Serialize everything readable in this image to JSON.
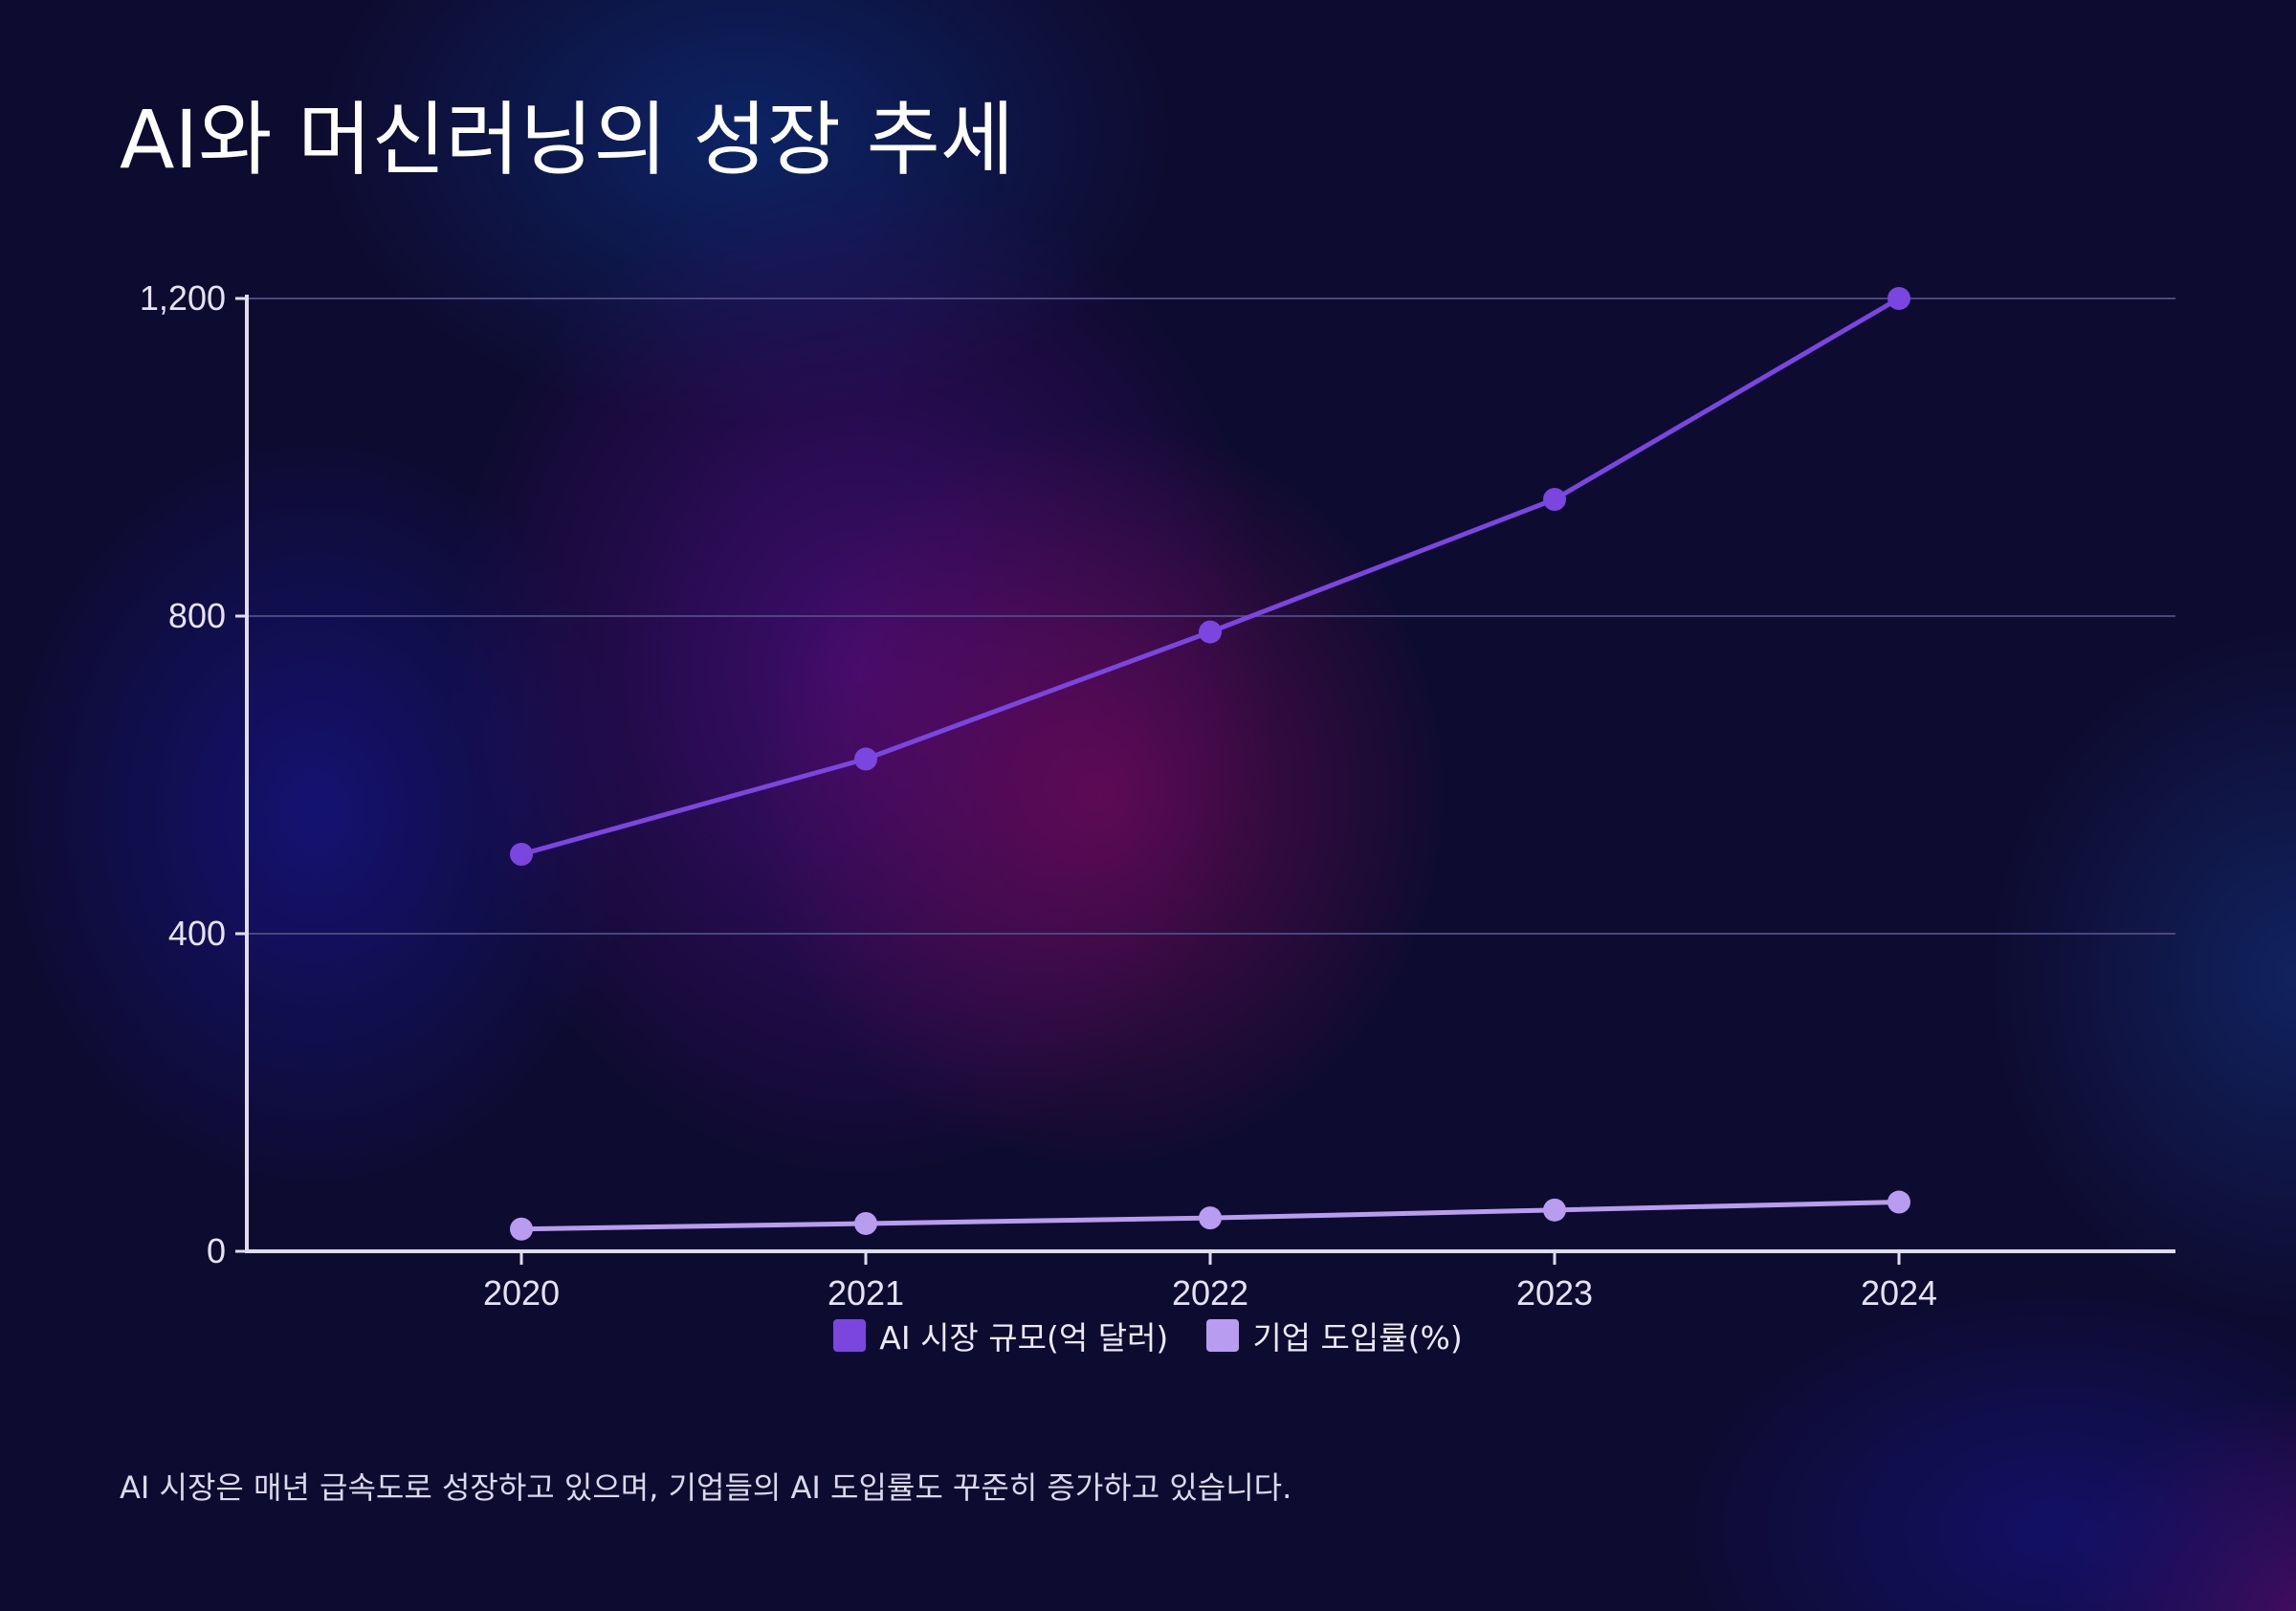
{
  "title": "AI와 머신러닝의 성장 추세",
  "caption": "AI 시장은 매년 급속도로 성장하고 있으며, 기업들의 AI 도입률도 꾸준히 증가하고 있습니다.",
  "colors": {
    "series_market": "#7b45e0",
    "series_adoption": "#b89cf0",
    "axis": "#e0dcf0",
    "grid": "#4a4680"
  },
  "chart_data": {
    "type": "line",
    "title": "AI와 머신러닝의 성장 추세",
    "x": [
      "2020",
      "2021",
      "2022",
      "2023",
      "2024"
    ],
    "series": [
      {
        "name": "AI 시장 규모(억 달러)",
        "values": [
          500,
          620,
          780,
          947,
          1200
        ]
      },
      {
        "name": "기업 도입률(%)",
        "values": [
          28,
          35,
          42,
          52,
          62
        ]
      }
    ],
    "yticks": [
      "0",
      "400",
      "800",
      "1,200"
    ],
    "ytick_values": [
      0,
      400,
      800,
      1200
    ],
    "ylim": [
      0,
      1200
    ],
    "xlabel": "",
    "ylabel": "",
    "grid": true,
    "legend": "bottom-center"
  }
}
